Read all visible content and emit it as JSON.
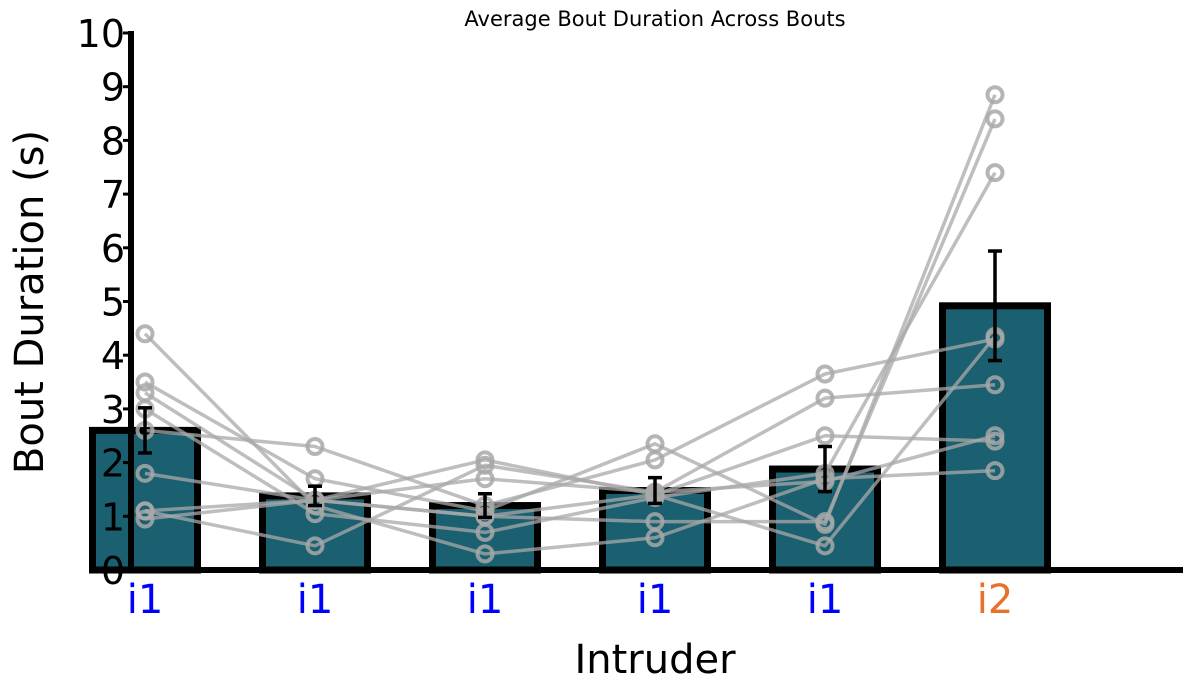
{
  "chart_data": {
    "type": "bar",
    "title": "Average Bout Duration Across Bouts",
    "xlabel": "Intruder",
    "ylabel": "Bout Duration (s)",
    "ylim": [
      0,
      10
    ],
    "yticks": [
      0,
      1,
      2,
      3,
      4,
      5,
      6,
      7,
      8,
      9,
      10
    ],
    "categories": [
      "i1",
      "i1",
      "i1",
      "i1",
      "i1",
      "i2"
    ],
    "category_colors": [
      "#0000ff",
      "#0000ff",
      "#0000ff",
      "#0000ff",
      "#0000ff",
      "#e8702a"
    ],
    "values": [
      2.6,
      1.38,
      1.2,
      1.48,
      1.88,
      4.92
    ],
    "errors": [
      0.42,
      0.18,
      0.22,
      0.24,
      0.42,
      1.02
    ],
    "bar_color": "#1a6070",
    "bar_edge_color": "#000000",
    "point_color": "#a8a8a8",
    "subjects": [
      [
        4.4,
        1.2,
        0.3,
        0.6,
        1.7,
        1.85
      ],
      [
        3.5,
        1.7,
        1.1,
        2.35,
        0.85,
        8.85
      ],
      [
        3.3,
        1.3,
        1.0,
        0.9,
        0.9,
        8.4
      ],
      [
        3.0,
        1.05,
        0.7,
        1.35,
        1.8,
        7.4
      ],
      [
        2.6,
        2.3,
        1.2,
        2.05,
        3.65,
        4.3
      ],
      [
        1.8,
        1.3,
        1.0,
        1.4,
        0.45,
        4.35
      ],
      [
        1.1,
        0.45,
        1.95,
        1.45,
        3.2,
        3.45
      ],
      [
        0.95,
        1.3,
        2.05,
        1.4,
        2.5,
        2.4
      ],
      [
        1.1,
        1.3,
        1.7,
        1.45,
        1.65,
        2.5
      ]
    ],
    "grid": false,
    "legend": "none"
  }
}
